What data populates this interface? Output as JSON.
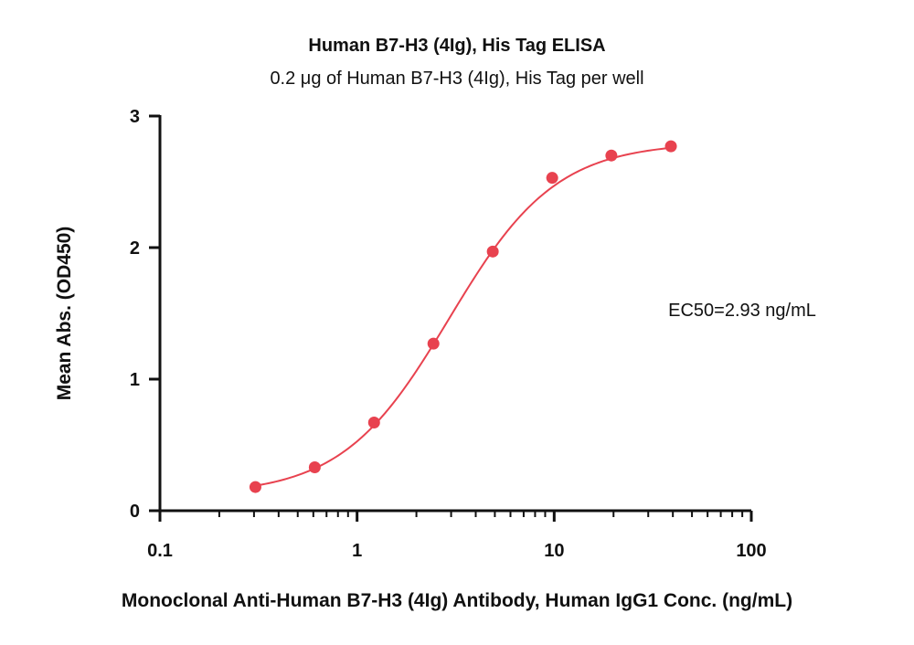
{
  "chart_data": {
    "type": "scatter",
    "title": "Human B7-H3 (4Ig), His Tag ELISA",
    "subtitle": "0.2 μg of Human B7-H3 (4Ig), His Tag per well",
    "xlabel": "Monoclonal Anti-Human B7-H3 (4Ig) Antibody, Human IgG1 Conc. (ng/mL)",
    "ylabel": "Mean Abs. (OD450)",
    "x_scale": "log",
    "xlim": [
      0.1,
      100
    ],
    "ylim": [
      0,
      3
    ],
    "x_ticks": [
      0.1,
      1,
      10,
      100
    ],
    "x_tick_labels": [
      "0.1",
      "1",
      "10",
      "100"
    ],
    "y_ticks": [
      0,
      1,
      2,
      3
    ],
    "y_tick_labels": [
      "0",
      "1",
      "2",
      "3"
    ],
    "grid": false,
    "series": [
      {
        "x": [
          0.305,
          0.61,
          1.22,
          2.44,
          4.88,
          9.77,
          19.5,
          39.1
        ],
        "y": [
          0.18,
          0.33,
          0.67,
          1.27,
          1.97,
          2.53,
          2.7,
          2.77
        ],
        "color": "#e8424f"
      }
    ],
    "fit_curve": {
      "model": "4PL",
      "bottom": 0.12,
      "top": 2.8,
      "ec50": 2.93,
      "hill": 1.6,
      "color": "#e8424f"
    },
    "annotations": [
      "EC50=2.93 ng/mL"
    ]
  }
}
